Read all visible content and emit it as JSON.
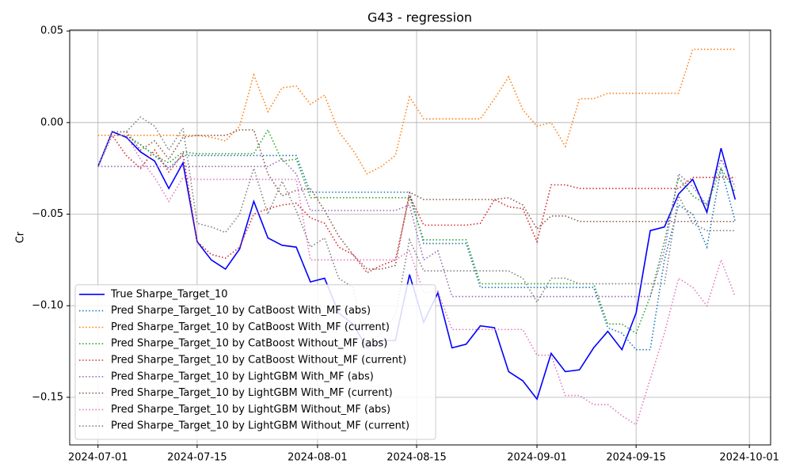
{
  "chart_data": {
    "type": "line",
    "title": "G43 - regression",
    "ylabel": "Cr",
    "x": [
      "2024-07-01",
      "2024-07-03",
      "2024-07-05",
      "2024-07-07",
      "2024-07-09",
      "2024-07-11",
      "2024-07-13",
      "2024-07-15",
      "2024-07-17",
      "2024-07-19",
      "2024-07-21",
      "2024-07-23",
      "2024-07-25",
      "2024-07-27",
      "2024-07-29",
      "2024-07-31",
      "2024-08-02",
      "2024-08-04",
      "2024-08-06",
      "2024-08-08",
      "2024-08-10",
      "2024-08-12",
      "2024-08-14",
      "2024-08-16",
      "2024-08-18",
      "2024-08-20",
      "2024-08-22",
      "2024-08-24",
      "2024-08-26",
      "2024-08-28",
      "2024-08-30",
      "2024-09-01",
      "2024-09-03",
      "2024-09-05",
      "2024-09-07",
      "2024-09-09",
      "2024-09-11",
      "2024-09-13",
      "2024-09-15",
      "2024-09-17",
      "2024-09-19",
      "2024-09-21",
      "2024-09-23",
      "2024-09-25",
      "2024-09-27",
      "2024-09-29"
    ],
    "xlim": [
      "2024-06-27",
      "2024-10-04"
    ],
    "xticks": [
      "2024-07-01",
      "2024-07-15",
      "2024-08-01",
      "2024-08-15",
      "2024-09-01",
      "2024-09-15",
      "2024-10-01"
    ],
    "ylim": [
      -0.176,
      0.0505
    ],
    "yticks": [
      {
        "value": 0.05,
        "label": "0.05"
      },
      {
        "value": 0,
        "label": "0.00"
      },
      {
        "value": -0.05,
        "label": "−0.05"
      },
      {
        "value": -0.1,
        "label": "−0.10"
      },
      {
        "value": -0.15,
        "label": "−0.15"
      }
    ],
    "grid": true,
    "legend": "lower left",
    "series": [
      {
        "name": "True Sharpe_Target_10",
        "color": "#0000ff",
        "style": "solid",
        "values": [
          -0.024,
          -0.005,
          -0.008,
          -0.016,
          -0.021,
          -0.036,
          -0.022,
          -0.065,
          -0.075,
          -0.08,
          -0.069,
          -0.043,
          -0.063,
          -0.067,
          -0.068,
          -0.087,
          -0.085,
          -0.104,
          -0.11,
          -0.123,
          -0.119,
          -0.119,
          -0.083,
          -0.109,
          -0.093,
          -0.123,
          -0.121,
          -0.111,
          -0.112,
          -0.136,
          -0.141,
          -0.151,
          -0.126,
          -0.136,
          -0.135,
          -0.123,
          -0.114,
          -0.124,
          -0.104,
          -0.059,
          -0.057,
          -0.039,
          -0.031,
          -0.049,
          -0.014,
          -0.042
        ]
      },
      {
        "name": "Pred Sharpe_Target_10 by CatBoost With_MF (abs)",
        "color": "#1f77b4",
        "style": "dotted",
        "values": [
          -0.024,
          -0.007,
          -0.007,
          -0.012,
          -0.018,
          -0.025,
          -0.018,
          -0.018,
          -0.018,
          -0.018,
          -0.018,
          -0.018,
          -0.018,
          -0.018,
          -0.018,
          -0.038,
          -0.038,
          -0.038,
          -0.038,
          -0.038,
          -0.038,
          -0.038,
          -0.038,
          -0.066,
          -0.066,
          -0.066,
          -0.066,
          -0.09,
          -0.09,
          -0.09,
          -0.09,
          -0.09,
          -0.09,
          -0.09,
          -0.09,
          -0.09,
          -0.112,
          -0.115,
          -0.124,
          -0.124,
          -0.075,
          -0.045,
          -0.05,
          -0.068,
          -0.025,
          -0.054
        ]
      },
      {
        "name": "Pred Sharpe_Target_10 by CatBoost With_MF (current)",
        "color": "#ff7f0e",
        "style": "dotted",
        "values": [
          -0.007,
          -0.007,
          -0.007,
          -0.007,
          -0.007,
          -0.007,
          -0.007,
          -0.007,
          -0.008,
          -0.01,
          -0.002,
          0.026,
          0.006,
          0.019,
          0.02,
          0.01,
          0.015,
          -0.005,
          -0.015,
          -0.028,
          -0.024,
          -0.018,
          0.014,
          0.002,
          0.002,
          0.002,
          0.002,
          0.002,
          0.013,
          0.025,
          0.007,
          -0.002,
          0.0,
          -0.013,
          0.013,
          0.013,
          0.016,
          0.016,
          0.016,
          0.016,
          0.016,
          0.016,
          0.04,
          0.04,
          0.04,
          0.04
        ]
      },
      {
        "name": "Pred Sharpe_Target_10 by CatBoost Without_MF (abs)",
        "color": "#2ca02c",
        "style": "dotted",
        "values": [
          -0.024,
          -0.007,
          -0.007,
          -0.012,
          -0.018,
          -0.022,
          -0.016,
          -0.017,
          -0.017,
          -0.017,
          -0.017,
          -0.017,
          -0.004,
          -0.021,
          -0.02,
          -0.041,
          -0.041,
          -0.041,
          -0.041,
          -0.041,
          -0.041,
          -0.041,
          -0.041,
          -0.064,
          -0.064,
          -0.064,
          -0.064,
          -0.088,
          -0.088,
          -0.088,
          -0.088,
          -0.088,
          -0.088,
          -0.088,
          -0.088,
          -0.088,
          -0.11,
          -0.11,
          -0.115,
          -0.095,
          -0.065,
          -0.03,
          -0.04,
          -0.045,
          -0.025,
          -0.038
        ]
      },
      {
        "name": "Pred Sharpe_Target_10 by CatBoost Without_MF (current)",
        "color": "#d62728",
        "style": "dotted",
        "values": [
          -0.024,
          -0.007,
          -0.018,
          -0.025,
          -0.015,
          -0.027,
          -0.017,
          -0.065,
          -0.072,
          -0.074,
          -0.068,
          -0.05,
          -0.047,
          -0.045,
          -0.044,
          -0.052,
          -0.055,
          -0.068,
          -0.072,
          -0.082,
          -0.078,
          -0.075,
          -0.04,
          -0.056,
          -0.056,
          -0.056,
          -0.056,
          -0.055,
          -0.042,
          -0.046,
          -0.047,
          -0.065,
          -0.034,
          -0.034,
          -0.036,
          -0.036,
          -0.036,
          -0.036,
          -0.036,
          -0.036,
          -0.036,
          -0.036,
          -0.03,
          -0.03,
          -0.03,
          -0.03
        ]
      },
      {
        "name": "Pred Sharpe_Target_10 by LightGBM With_MF (abs)",
        "color": "#9467bd",
        "style": "dotted",
        "values": [
          -0.024,
          -0.024,
          -0.024,
          -0.024,
          -0.024,
          -0.024,
          -0.024,
          -0.024,
          -0.024,
          -0.024,
          -0.024,
          -0.024,
          -0.024,
          -0.02,
          -0.028,
          -0.048,
          -0.048,
          -0.048,
          -0.048,
          -0.048,
          -0.048,
          -0.048,
          -0.045,
          -0.075,
          -0.07,
          -0.095,
          -0.095,
          -0.095,
          -0.095,
          -0.095,
          -0.095,
          -0.095,
          -0.095,
          -0.095,
          -0.095,
          -0.095,
          -0.095,
          -0.095,
          -0.095,
          -0.095,
          -0.07,
          -0.028,
          -0.035,
          -0.045,
          -0.02,
          -0.035
        ]
      },
      {
        "name": "Pred Sharpe_Target_10 by LightGBM With_MF (current)",
        "color": "#8c564b",
        "style": "dotted",
        "values": [
          -0.024,
          -0.005,
          -0.005,
          -0.015,
          -0.01,
          -0.02,
          -0.008,
          -0.007,
          -0.007,
          -0.007,
          -0.004,
          -0.004,
          -0.028,
          -0.04,
          -0.037,
          -0.036,
          -0.048,
          -0.062,
          -0.072,
          -0.08,
          -0.08,
          -0.078,
          -0.038,
          -0.042,
          -0.042,
          -0.042,
          -0.042,
          -0.042,
          -0.042,
          -0.041,
          -0.045,
          -0.058,
          -0.051,
          -0.051,
          -0.054,
          -0.054,
          -0.054,
          -0.054,
          -0.054,
          -0.054,
          -0.054,
          -0.054,
          -0.054,
          -0.054,
          -0.054,
          -0.054
        ]
      },
      {
        "name": "Pred Sharpe_Target_10 by LightGBM Without_MF (abs)",
        "color": "#e377c2",
        "style": "dotted",
        "values": [
          -0.024,
          -0.007,
          -0.007,
          -0.02,
          -0.03,
          -0.043,
          -0.03,
          -0.031,
          -0.031,
          -0.031,
          -0.031,
          -0.031,
          -0.031,
          -0.031,
          -0.031,
          -0.075,
          -0.075,
          -0.075,
          -0.075,
          -0.075,
          -0.075,
          -0.075,
          -0.07,
          -0.093,
          -0.092,
          -0.113,
          -0.113,
          -0.113,
          -0.113,
          -0.113,
          -0.113,
          -0.127,
          -0.127,
          -0.149,
          -0.149,
          -0.154,
          -0.154,
          -0.16,
          -0.165,
          -0.14,
          -0.115,
          -0.085,
          -0.09,
          -0.1,
          -0.075,
          -0.095
        ]
      },
      {
        "name": "Pred Sharpe_Target_10 by LightGBM Without_MF (current)",
        "color": "#7f7f7f",
        "style": "dotted",
        "values": [
          -0.024,
          -0.005,
          -0.005,
          0.003,
          -0.002,
          -0.015,
          -0.003,
          -0.055,
          -0.057,
          -0.06,
          -0.05,
          -0.025,
          -0.05,
          -0.032,
          -0.048,
          -0.068,
          -0.063,
          -0.085,
          -0.09,
          -0.123,
          -0.115,
          -0.105,
          -0.064,
          -0.081,
          -0.081,
          -0.081,
          -0.081,
          -0.081,
          -0.081,
          -0.081,
          -0.085,
          -0.098,
          -0.085,
          -0.085,
          -0.088,
          -0.088,
          -0.088,
          -0.088,
          -0.088,
          -0.088,
          -0.088,
          -0.04,
          -0.055,
          -0.059,
          -0.059,
          -0.059
        ]
      }
    ]
  }
}
